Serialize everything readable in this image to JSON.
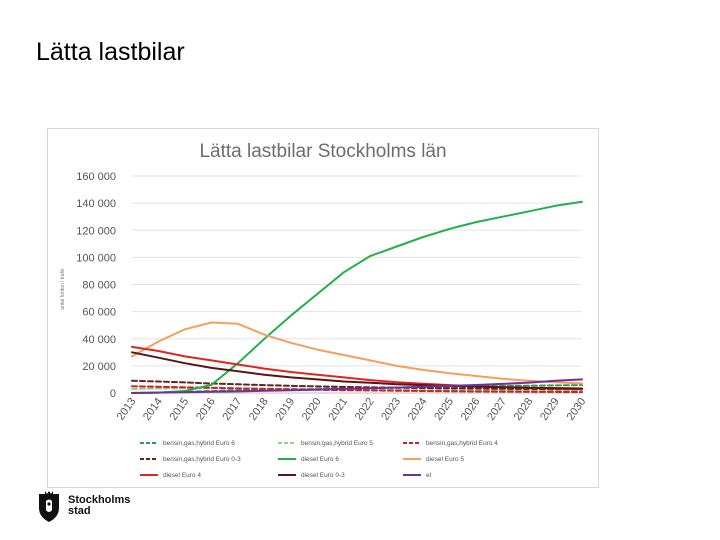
{
  "slide": {
    "title": "Lätta lastbilar"
  },
  "logo": {
    "line1": "Stockholms",
    "line2": "stad"
  },
  "colors": {
    "frame_border": "#d6d6d6",
    "grid": "#e3e3e3"
  },
  "chart_data": {
    "type": "line",
    "title": "Lätta lastbilar Stockholms län",
    "ylabel": "antal fordon i trafik",
    "xlabel": "",
    "ylim": [
      0,
      160000
    ],
    "yticks": [
      0,
      20000,
      40000,
      60000,
      80000,
      100000,
      120000,
      140000,
      160000
    ],
    "ytick_labels": [
      "0",
      "20 000",
      "40 000",
      "60 000",
      "80 000",
      "100 000",
      "120 000",
      "140 000",
      "160 000"
    ],
    "categories": [
      "2013",
      "2014",
      "2015",
      "2016",
      "2017",
      "2018",
      "2019",
      "2020",
      "2021",
      "2022",
      "2023",
      "2024",
      "2025",
      "2026",
      "2027",
      "2028",
      "2029",
      "2030"
    ],
    "legend_position": "bottom",
    "series": [
      {
        "name": "bensin,gas,hybrid Euro 6",
        "color": "#2e9e4c",
        "dash": true,
        "values": [
          0,
          400,
          900,
          1400,
          1900,
          2300,
          2700,
          3100,
          3400,
          3700,
          4000,
          4300,
          4600,
          4900,
          5200,
          5400,
          5600,
          5800
        ]
      },
      {
        "name": "bensin,gas,hybrid Euro 5",
        "color": "#8fd18f",
        "dash": true,
        "values": [
          3000,
          3300,
          3500,
          3500,
          3400,
          3200,
          3000,
          2800,
          2600,
          2400,
          2200,
          2000,
          1900,
          1800,
          1700,
          1600,
          1500,
          1400
        ]
      },
      {
        "name": "bensin,gas,hybrid Euro 4",
        "color": "#d02020",
        "dash": true,
        "values": [
          5000,
          4600,
          4200,
          3800,
          3400,
          3000,
          2700,
          2400,
          2100,
          1900,
          1700,
          1500,
          1300,
          1100,
          1000,
          900,
          800,
          700
        ]
      },
      {
        "name": "bensin,gas,hybrid Euro 0-3",
        "color": "#6b1f1f",
        "dash": true,
        "values": [
          9000,
          8500,
          7800,
          7000,
          6400,
          5800,
          5300,
          4900,
          4500,
          4200,
          3900,
          3700,
          3500,
          3300,
          3100,
          3000,
          2900,
          2800
        ]
      },
      {
        "name": "diesel Euro 6",
        "color": "#22b04b",
        "dash": false,
        "values": [
          0,
          300,
          1500,
          6000,
          22000,
          40000,
          57000,
          73000,
          89000,
          101000,
          108000,
          115000,
          121000,
          126000,
          130000,
          134000,
          138000,
          141000
        ]
      },
      {
        "name": "diesel Euro 5",
        "color": "#f2a05a",
        "dash": false,
        "values": [
          27000,
          38000,
          47000,
          52000,
          51000,
          43000,
          37000,
          32000,
          28000,
          24000,
          20000,
          17000,
          14500,
          12500,
          10500,
          9000,
          8000,
          7000
        ]
      },
      {
        "name": "diesel Euro 4",
        "color": "#e02424",
        "dash": false,
        "values": [
          34000,
          31000,
          27000,
          24000,
          21000,
          18000,
          15500,
          13500,
          11500,
          9500,
          8000,
          6800,
          5800,
          5000,
          4300,
          3700,
          3200,
          2800
        ]
      },
      {
        "name": "diesel Euro 0-3",
        "color": "#5a1515",
        "dash": false,
        "values": [
          30000,
          26000,
          22000,
          18500,
          16000,
          13500,
          11500,
          10000,
          8500,
          7500,
          6500,
          5800,
          5200,
          4700,
          4300,
          3900,
          3600,
          3300
        ]
      },
      {
        "name": "el",
        "color": "#7030a0",
        "dash": false,
        "values": [
          0,
          300,
          600,
          900,
          1200,
          1600,
          2000,
          2500,
          3000,
          3500,
          4000,
          4600,
          5200,
          5900,
          6700,
          7700,
          9000,
          10000
        ]
      }
    ]
  }
}
